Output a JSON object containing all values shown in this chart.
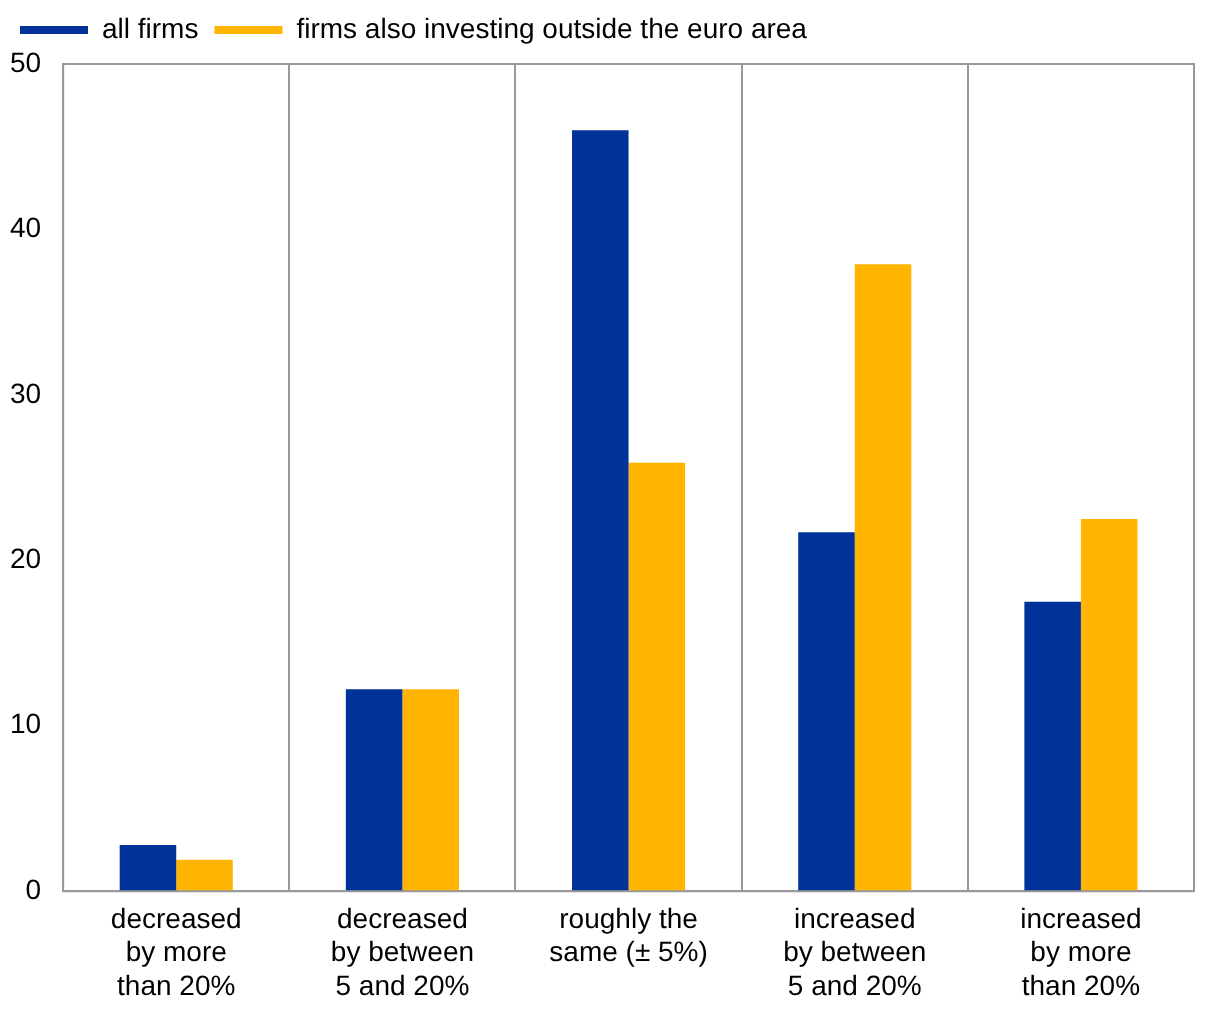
{
  "chart_data": {
    "type": "bar",
    "categories": [
      "decreased by more than 20%",
      "decreased by between 5 and 20%",
      "roughly the same (± 5%)",
      "increased by between 5 and 20%",
      "increased by more than 20%"
    ],
    "series": [
      {
        "name": "all firms",
        "color": "#003299",
        "values": [
          2.8,
          12.2,
          46,
          21.7,
          17.5
        ]
      },
      {
        "name": "firms also investing outside the euro area",
        "color": "#ffb400",
        "values": [
          1.9,
          12.2,
          25.9,
          37.9,
          22.5
        ]
      }
    ],
    "ylim": [
      0,
      50
    ],
    "yticks": [
      0,
      10,
      20,
      30,
      40,
      50
    ],
    "grid": "x",
    "legend": "top left"
  }
}
